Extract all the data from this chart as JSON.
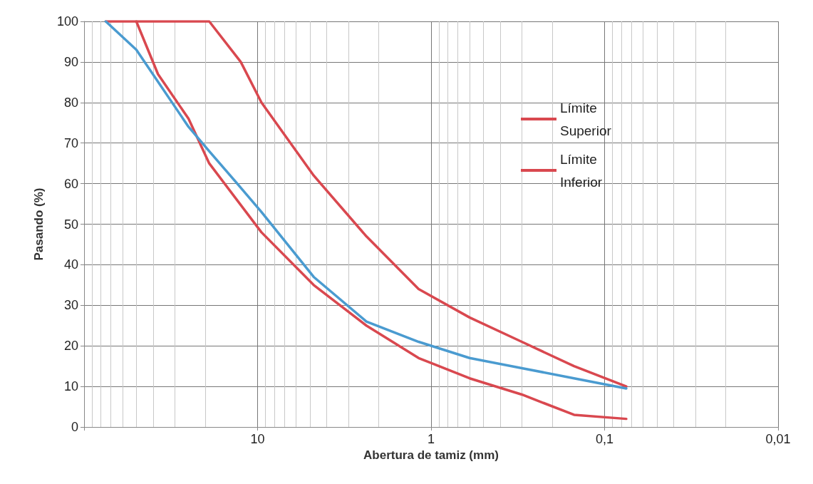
{
  "chart_data": {
    "type": "line",
    "xlabel": "Abertura de tamiz (mm)",
    "ylabel": "Pasando (%)",
    "log": "x",
    "xlim": [
      100,
      0.01
    ],
    "xticks": [
      {
        "value": 100,
        "label": null
      },
      10,
      1,
      {
        "value": 0.1,
        "label": "0,1"
      },
      {
        "value": 0.01,
        "label": "0,01"
      }
    ],
    "ylim": [
      0,
      100
    ],
    "yticks": [
      0,
      10,
      20,
      30,
      40,
      50,
      60,
      70,
      80,
      90,
      100
    ],
    "grid": true,
    "legend": "right",
    "marker": "none",
    "line_style": "solid",
    "series": [
      {
        "name": "Límite Superior",
        "color": "#d9484f",
        "x": [
          75,
          19,
          12.5,
          9.5,
          4.75,
          2.36,
          1.18,
          0.6,
          0.3,
          0.15,
          0.075
        ],
        "values": [
          100,
          100,
          90,
          80,
          62,
          47,
          34,
          27,
          21,
          15,
          10
        ]
      },
      {
        "name": "Límite Inferior",
        "color": "#d9484f",
        "x": [
          50,
          37.5,
          25,
          19,
          9.5,
          4.75,
          2.36,
          1.18,
          0.6,
          0.3,
          0.15,
          0.075
        ],
        "values": [
          100,
          87,
          76,
          65,
          48,
          35,
          25,
          17,
          12,
          8,
          3,
          2
        ]
      },
      {
        "color": "#4a9bd0",
        "x": [
          75,
          50,
          25,
          19,
          12.5,
          9.5,
          4.75,
          2.36,
          1.18,
          0.6,
          0.3,
          0.15,
          0.075
        ],
        "values": [
          100,
          93,
          74,
          68,
          59,
          53,
          37,
          26,
          21,
          17,
          14.5,
          12,
          9.5
        ]
      }
    ]
  }
}
